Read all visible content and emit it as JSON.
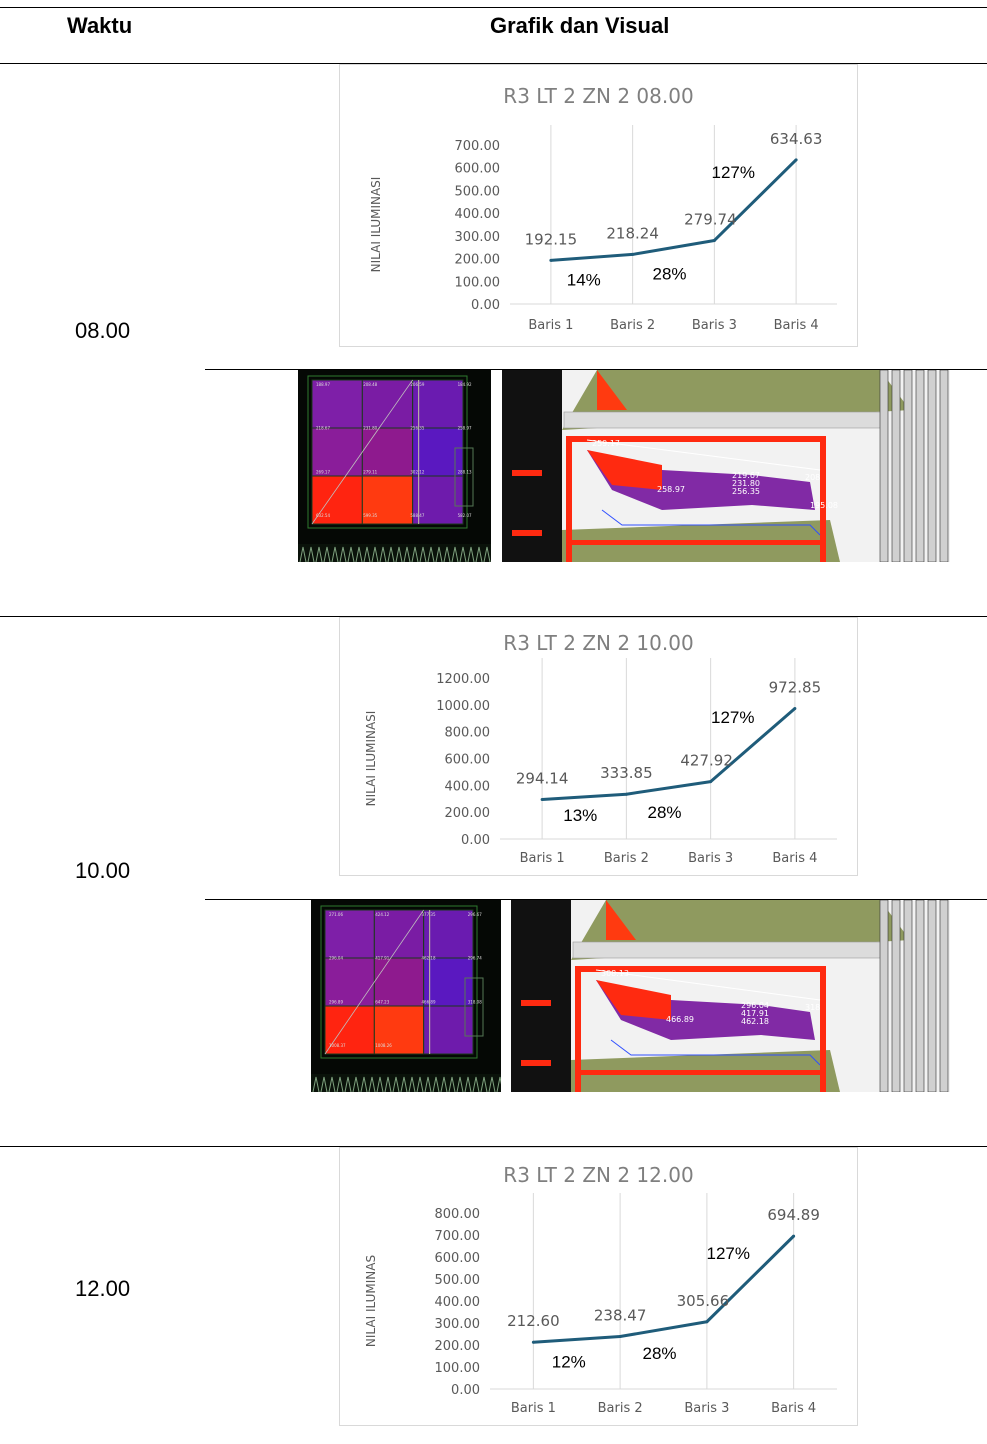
{
  "table": {
    "headers": {
      "time": "Waktu",
      "content": "Grafik dan Visual"
    },
    "rows": [
      {
        "time": "08.00"
      },
      {
        "time": "10.00"
      },
      {
        "time": "12.00"
      }
    ]
  },
  "chart_data": [
    {
      "type": "line",
      "title": "R3 LT 2 ZN 2 08.00",
      "ylabel": "NILAI ILUMINASI",
      "xlabel": "",
      "categories": [
        "Baris 1",
        "Baris 2",
        "Baris 3",
        "Baris 4"
      ],
      "values": [
        192.15,
        218.24,
        279.74,
        634.63
      ],
      "value_labels": [
        "192.15",
        "218.24",
        "279.74",
        "634.63"
      ],
      "ylim": [
        0,
        700
      ],
      "yticks": [
        "0.00",
        "100.00",
        "200.00",
        "300.00",
        "400.00",
        "500.00",
        "600.00",
        "700.00"
      ],
      "annotations": [
        "14%",
        "28%",
        "127%"
      ],
      "line_color": "#1f5c7a",
      "grid": "vertical"
    },
    {
      "type": "line",
      "title": "R3 LT 2 ZN 2 10.00",
      "ylabel": "NILAI ILUMINASI",
      "xlabel": "",
      "categories": [
        "Baris 1",
        "Baris 2",
        "Baris 3",
        "Baris 4"
      ],
      "values": [
        294.14,
        333.85,
        427.92,
        972.85
      ],
      "value_labels": [
        "294.14",
        "333.85",
        "427.92",
        "972.85"
      ],
      "ylim": [
        0,
        1200
      ],
      "yticks": [
        "0.00",
        "200.00",
        "400.00",
        "600.00",
        "800.00",
        "1000.00",
        "1200.00"
      ],
      "annotations": [
        "13%",
        "28%",
        "127%"
      ],
      "line_color": "#1f5c7a",
      "grid": "vertical"
    },
    {
      "type": "line",
      "title": "R3 LT 2 ZN 2 12.00",
      "ylabel": "NILAI ILUMINAS",
      "xlabel": "",
      "categories": [
        "Baris 1",
        "Baris 2",
        "Baris 3",
        "Baris 4"
      ],
      "values": [
        212.6,
        238.47,
        305.66,
        694.89
      ],
      "value_labels": [
        "212.60",
        "238.47",
        "305.66",
        "694.89"
      ],
      "ylim": [
        0,
        800
      ],
      "yticks": [
        "0.00",
        "100.00",
        "200.00",
        "300.00",
        "400.00",
        "500.00",
        "600.00",
        "700.00",
        "800.00"
      ],
      "annotations": [
        "12%",
        "28%",
        "127%"
      ],
      "line_color": "#1f5c7a",
      "grid": "vertical"
    }
  ],
  "renders": [
    {
      "plan_values": [
        "188.97",
        "208.48",
        "206.59",
        "184.92",
        "218.67",
        "231.80",
        "256.35",
        "258.97",
        "269.17",
        "279.11",
        "302.12",
        "288.13",
        "632.54",
        "599.35",
        "588.47",
        "582.07"
      ],
      "view_labels": [
        "259.17",
        "258.97",
        "219.67",
        "231.80",
        "256.35",
        "208",
        "195.08"
      ],
      "colors": {
        "purple": "#7a1fa0",
        "red": "#ff2a10",
        "olive": "#8f9a5f"
      }
    },
    {
      "plan_values": [
        "271.06",
        "424.12",
        "377.35",
        "296.67",
        "296.04",
        "417.91",
        "462.18",
        "296.74",
        "296.89",
        "647.23",
        "466.89",
        "318.08",
        "1008.37",
        "1008.26"
      ],
      "view_labels": [
        "308.13",
        "466.89",
        "296.04",
        "417.91",
        "462.18",
        "318"
      ],
      "colors": {
        "purple": "#7a1fa0",
        "red": "#ff2a10",
        "olive": "#8f9a5f"
      }
    }
  ]
}
